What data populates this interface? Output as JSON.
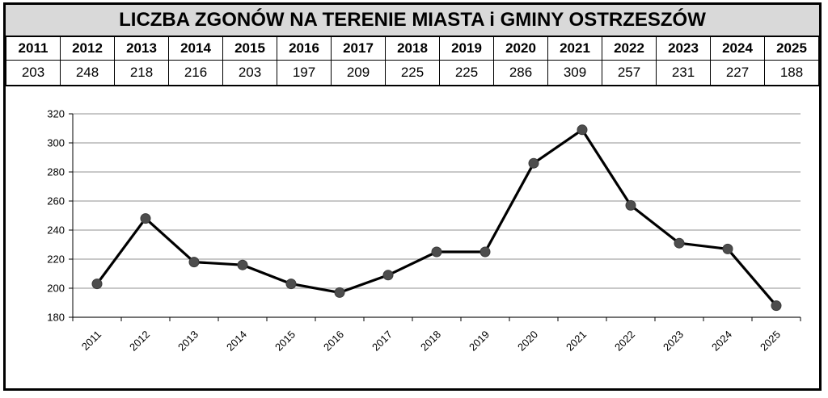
{
  "title": "LICZBA ZGONÓW NA TERENIE MIASTA i GMINY OSTRZESZÓW",
  "table": {
    "years": [
      "2011",
      "2012",
      "2013",
      "2014",
      "2015",
      "2016",
      "2017",
      "2018",
      "2019",
      "2020",
      "2021",
      "2022",
      "2023",
      "2024",
      "2025"
    ],
    "values": [
      "203",
      "248",
      "218",
      "216",
      "203",
      "197",
      "209",
      "225",
      "225",
      "286",
      "309",
      "257",
      "231",
      "227",
      "188"
    ]
  },
  "colors": {
    "line": "#000000",
    "marker": "#4d4d4d",
    "grid": "#a6a6a6",
    "title_bg": "#d9d9d9"
  },
  "chart_data": {
    "type": "line",
    "categories": [
      "2011",
      "2012",
      "2013",
      "2014",
      "2015",
      "2016",
      "2017",
      "2018",
      "2019",
      "2020",
      "2021",
      "2022",
      "2023",
      "2024",
      "2025"
    ],
    "series": [
      {
        "values": [
          203,
          248,
          218,
          216,
          203,
          197,
          209,
          225,
          225,
          286,
          309,
          257,
          231,
          227,
          188
        ]
      }
    ],
    "title": "",
    "xlabel": "",
    "ylabel": "",
    "ylim": [
      180,
      320
    ],
    "yticks": [
      180,
      200,
      220,
      240,
      260,
      280,
      300,
      320
    ],
    "grid": true,
    "legend": "none"
  }
}
